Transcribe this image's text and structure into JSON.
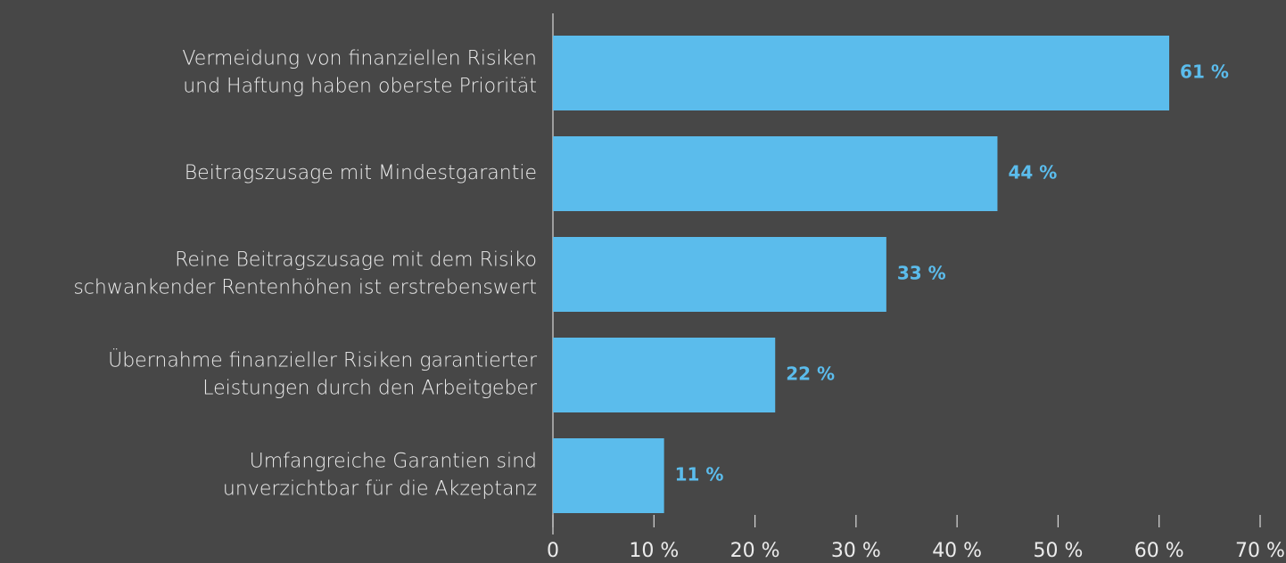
{
  "chart_data": {
    "type": "bar",
    "orientation": "horizontal",
    "categories": [
      [
        "Vermeidung von finanziellen Risiken",
        "und Haftung haben oberste Priorität"
      ],
      [
        "Beitragszusage mit Mindestgarantie"
      ],
      [
        "Reine Beitragszusage mit dem Risiko",
        "schwankender Rentenhöhen ist erstrebenswert"
      ],
      [
        "Übernahme finanzieller Risiken garantierter",
        "Leistungen durch den Arbeitgeber"
      ],
      [
        "Umfangreiche Garantien sind",
        "unverzichtbar für die Akzeptanz"
      ]
    ],
    "values": [
      61,
      44,
      33,
      22,
      11
    ],
    "value_labels": [
      "61 %",
      "44 %",
      "33 %",
      "22 %",
      "11 %"
    ],
    "color": "#5bbcec",
    "xlim": [
      0,
      70
    ],
    "xticks": [
      0,
      {
        "value": 10,
        "label": "10 %"
      },
      {
        "value": 20,
        "label": "20 %"
      },
      {
        "value": 30,
        "label": "30 %"
      },
      {
        "value": 40,
        "label": "40 %"
      },
      {
        "value": 50,
        "label": "50 %"
      },
      {
        "value": 60,
        "label": "60 %"
      },
      {
        "value": 70,
        "label": "70 %"
      }
    ]
  }
}
